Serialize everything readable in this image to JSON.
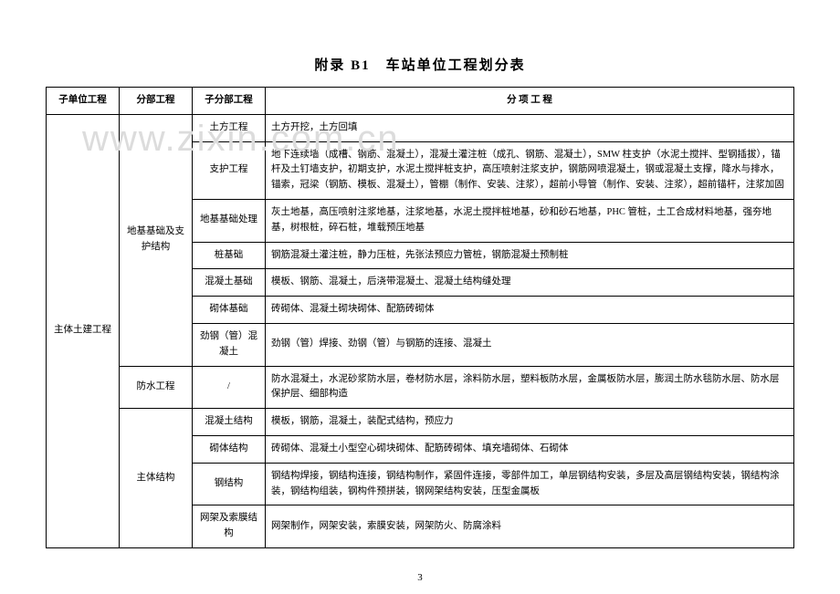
{
  "title": "附录 B1　车站单位工程划分表",
  "watermark": "www.zixin.com.cn",
  "page_num": "3",
  "colors": {
    "text": "#000000",
    "border": "#000000",
    "background": "#ffffff",
    "watermark": "#dcdcdc"
  },
  "font_sizes": {
    "title_pt": 15,
    "cell_pt": 10.5,
    "page_num_pt": 11,
    "watermark_pt": 40
  },
  "headers": {
    "h1": "子单位工程",
    "h2": "分部工程",
    "h3": "子分部工程",
    "h4": "分 项 工 程"
  },
  "sub_unit": "主体土建工程",
  "groups": [
    {
      "name": "地基基础及支护结构",
      "rows": [
        {
          "sub": "土方工程",
          "items": "土方开挖，土方回填"
        },
        {
          "sub": "支护工程",
          "items": "地下连续墙（成槽、钢筋、混凝土），混凝土灌注桩（成孔、钢筋、混凝土），SMW 柱支护（水泥土搅拌、型钢插拔），锚杆及土钉墙支护，初期支护，水泥土搅拌桩支护，高压喷射注浆支护，钢筋网喷混凝土，钢或混凝土支撑，降水与排水，锚索，冠梁（钢筋、模板、混凝土），管棚（制作、安装、注浆），超前小导管（制作、安装、注浆），超前锚杆，注浆加固"
        },
        {
          "sub": "地基基础处理",
          "items": "灰土地基，高压喷射注浆地基，注浆地基，水泥土搅拌桩地基，砂和砂石地基，PHC 管桩，土工合成材料地基，强夯地基，树根桩，碎石桩，堆载预压地基"
        },
        {
          "sub": "桩基础",
          "items": "钢筋混凝土灌注桩，静力压桩，先张法预应力管桩，钢筋混凝土预制桩"
        },
        {
          "sub": "混凝土基础",
          "items": "模板、钢筋、混凝土，后浇带混凝土、混凝土结构缝处理"
        },
        {
          "sub": "砌体基础",
          "items": "砖砌体、混凝土砌块砌体、配筋砖砌体"
        },
        {
          "sub": "劲钢（管）混凝土",
          "items": "劲钢（管）焊接、劲钢（管）与钢筋的连接、混凝土"
        }
      ]
    },
    {
      "name": "防水工程",
      "rows": [
        {
          "sub": "/",
          "items": "防水混凝土，水泥砂浆防水层，卷材防水层，涂料防水层，塑料板防水层，金属板防水层，膨润土防水毯防水层、防水层保护层、细部构造"
        }
      ]
    },
    {
      "name": "主体结构",
      "rows": [
        {
          "sub": "混凝土结构",
          "items": "模板，钢筋，混凝土，装配式结构，预应力"
        },
        {
          "sub": "砌体结构",
          "items": "砖砌体、混凝土小型空心砌块砌体、配筋砖砌体、填充墙砌体、石砌体"
        },
        {
          "sub": "钢结构",
          "items": "钢结构焊接，钢结构连接，钢结构制作，紧固件连接，零部件加工，单层钢结构安装，多层及高层钢结构安装，钢结构涂装，钢结构组装，钢构件预拼装，钢网架结构安装，压型金属板"
        },
        {
          "sub": "网架及索膜结构",
          "items": "网架制作，网架安装，索膜安装，网架防火、防腐涂料"
        }
      ]
    }
  ]
}
